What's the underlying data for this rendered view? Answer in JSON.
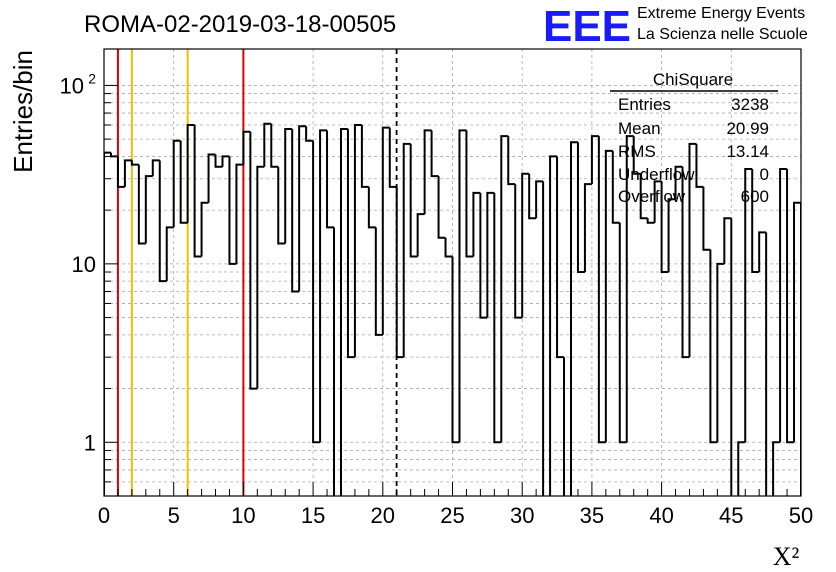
{
  "run_title": "ROMA-02-2019-03-18-00505",
  "logo": {
    "mark": "EEE",
    "line1": "Extreme Energy Events",
    "line2": "La Scienza nelle Scuole",
    "color": "#1a1aff"
  },
  "stats_box": {
    "title": "ChiSquare",
    "rows": [
      {
        "label": "Entries",
        "value": "3238"
      },
      {
        "label": "Mean",
        "value": "20.99"
      },
      {
        "label": "RMS",
        "value": "13.14"
      },
      {
        "label": "Underflow",
        "value": "0"
      },
      {
        "label": "Overflow",
        "value": "600"
      }
    ]
  },
  "colors": {
    "histogram": "#000000",
    "red_line": "#dd0000",
    "yellow_line": "#f0c000",
    "mean_line": "#000000",
    "grid": "#aaaaaa"
  },
  "chart_data": {
    "type": "histogram",
    "xlabel": "X²",
    "ylabel": "Entries/bin",
    "xlim": [
      0,
      50
    ],
    "ylim": [
      0.5,
      160
    ],
    "yscale": "log",
    "bin_width": 0.5,
    "x_ticks": [
      "0",
      "5",
      "10",
      "15",
      "20",
      "25",
      "30",
      "35",
      "40",
      "45",
      "50"
    ],
    "y_ticks": [
      {
        "value": 1,
        "label": "1"
      },
      {
        "value": 10,
        "label": "10"
      },
      {
        "value": 100,
        "label": "10",
        "exponent": "2"
      }
    ],
    "bin_counts": [
      42,
      40,
      27,
      38,
      36,
      13,
      31,
      38,
      8,
      16,
      49,
      17,
      60,
      11,
      22,
      41,
      35,
      40,
      10,
      36,
      55,
      2,
      35,
      61,
      35,
      13,
      57,
      7,
      59,
      49,
      1,
      56,
      16,
      0.4,
      57,
      3,
      60,
      27,
      16,
      4,
      58,
      27,
      3,
      47,
      11,
      19,
      56,
      31,
      14,
      11,
      1,
      56,
      11,
      25,
      5,
      25,
      1,
      52,
      28,
      5,
      32,
      18,
      29,
      0.4,
      40,
      3,
      0.4,
      48,
      9,
      28,
      52,
      1,
      43,
      17,
      1,
      52,
      32,
      18,
      17,
      29,
      9,
      23,
      35,
      3,
      47,
      27,
      12,
      1,
      10,
      18,
      0.4,
      1,
      34,
      9,
      15,
      0.4,
      1,
      34,
      1,
      22
    ],
    "vertical_lines": [
      {
        "x": 1.0,
        "color": "red"
      },
      {
        "x": 2.0,
        "color": "yellow"
      },
      {
        "x": 6.0,
        "color": "yellow"
      },
      {
        "x": 10.0,
        "color": "red"
      },
      {
        "x": 20.99,
        "color": "black",
        "style": "dashed"
      }
    ]
  }
}
